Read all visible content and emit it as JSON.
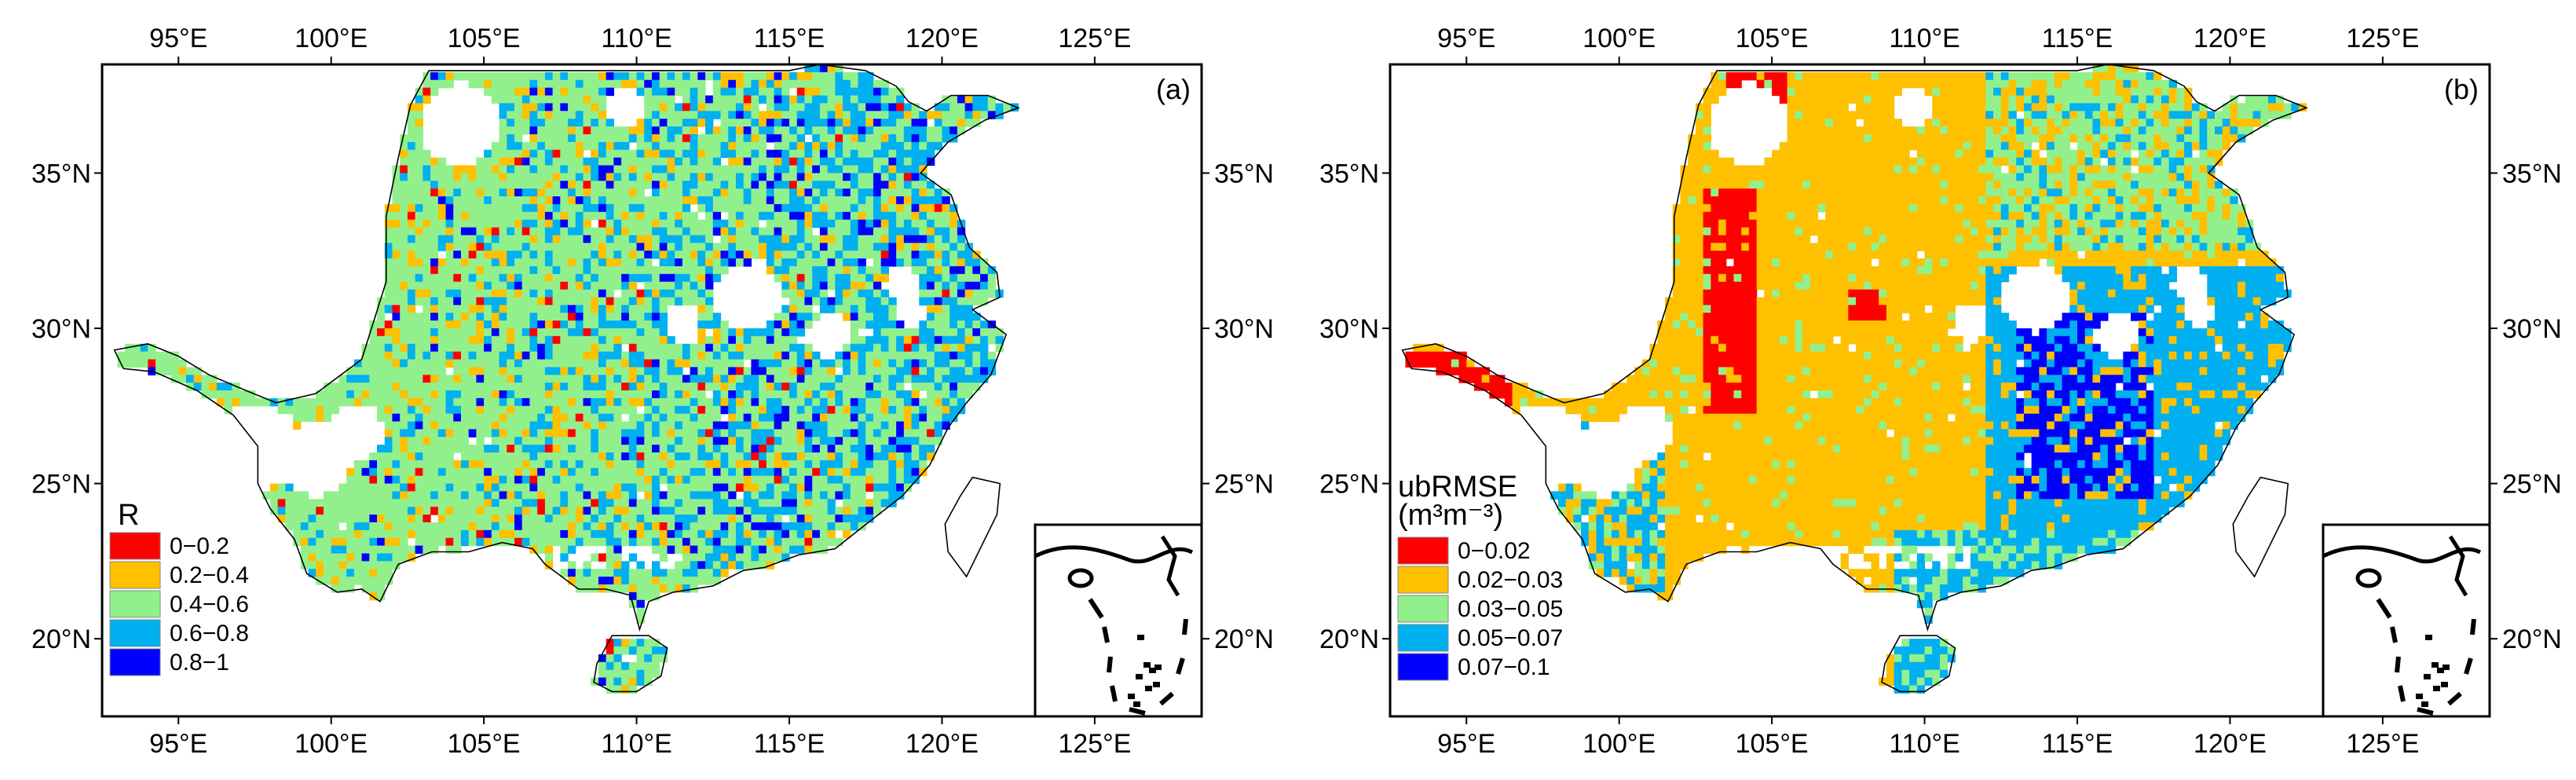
{
  "colors": {
    "red": "#ff0000",
    "orange": "#ffc000",
    "light_green": "#92f08c",
    "cyan": "#00b0f0",
    "blue": "#0000ff",
    "coast": "#000000",
    "frame": "#000000"
  },
  "axes": {
    "lon_ticks": [
      "95°E",
      "100°E",
      "105°E",
      "110°E",
      "115°E",
      "120°E",
      "125°E"
    ],
    "lat_ticks": [
      "35°N",
      "30°N",
      "25°N",
      "20°N"
    ],
    "lon_values": [
      95,
      100,
      105,
      110,
      115,
      120,
      125
    ],
    "lat_values": [
      35,
      30,
      25,
      20
    ],
    "lon_range": [
      92.5,
      128.5
    ],
    "lat_range": [
      17.5,
      38.5
    ]
  },
  "panels": [
    {
      "label": "(a)",
      "legend_title": "R",
      "legend_unit": "",
      "legend": [
        {
          "label": "0−0.2",
          "color": "#ff0000"
        },
        {
          "label": "0.2−0.4",
          "color": "#ffc000"
        },
        {
          "label": "0.4−0.6",
          "color": "#92f08c"
        },
        {
          "label": "0.6−0.8",
          "color": "#00b0f0"
        },
        {
          "label": "0.8−1",
          "color": "#0000ff"
        }
      ]
    },
    {
      "label": "(b)",
      "legend_title": "ubRMSE",
      "legend_unit": "(m³m⁻³)",
      "legend": [
        {
          "label": "0−0.02",
          "color": "#ff0000"
        },
        {
          "label": "0.02−0.03",
          "color": "#ffc000"
        },
        {
          "label": "0.03−0.05",
          "color": "#92f08c"
        },
        {
          "label": "0.05−0.07",
          "color": "#00b0f0"
        },
        {
          "label": "0.07−0.1",
          "color": "#0000ff"
        }
      ]
    }
  ]
}
